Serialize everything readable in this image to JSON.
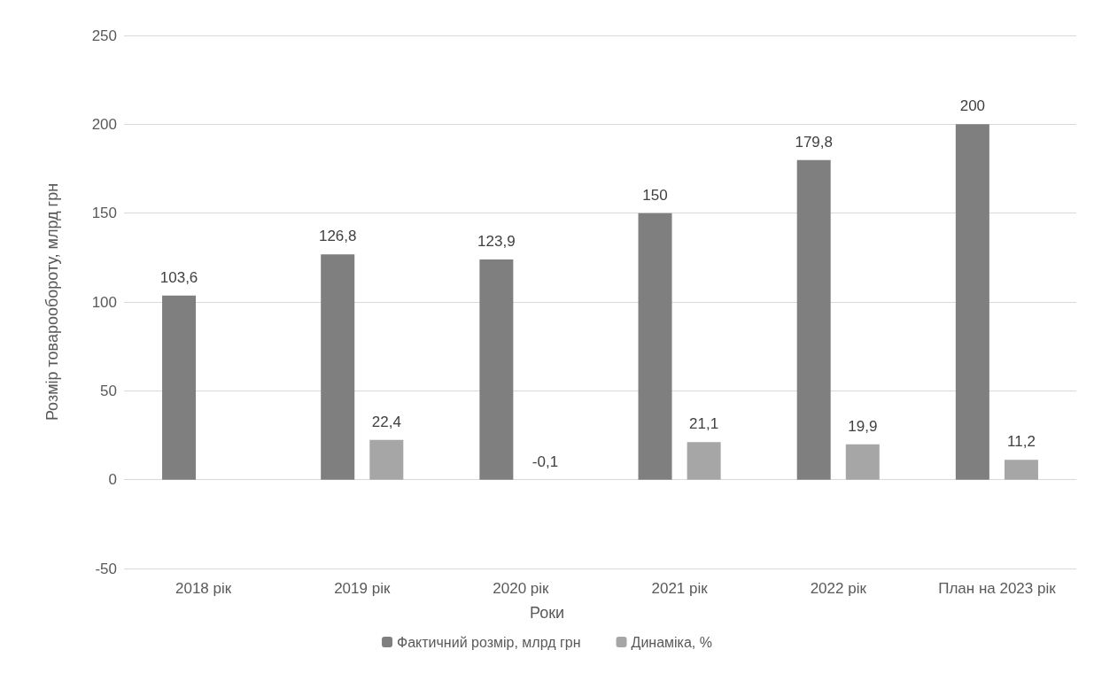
{
  "chart_data": {
    "type": "bar",
    "xlabel": "Роки",
    "ylabel": "Розмір товарообороту, млрд грн",
    "categories": [
      "2018 рік",
      "2019 рік",
      "2020 рік",
      "2021 рік",
      "2022 рік",
      "План на 2023 рік"
    ],
    "series": [
      {
        "name": "Фактичний розмір, млрд грн",
        "color": "#7f7f7f",
        "values": [
          103.6,
          126.8,
          123.9,
          150,
          179.8,
          200
        ],
        "value_labels": [
          "103,6",
          "126,8",
          "123,9",
          "150",
          "179,8",
          "200"
        ]
      },
      {
        "name": "Динаміка, %",
        "color": "#a6a6a6",
        "values": [
          null,
          22.4,
          -0.1,
          21.1,
          19.9,
          11.2
        ],
        "value_labels": [
          null,
          "22,4",
          "-0,1",
          "21,1",
          "19,9",
          "11,2"
        ]
      }
    ],
    "ylim": [
      -50,
      250
    ],
    "yticks": [
      -50,
      0,
      50,
      100,
      150,
      200,
      250
    ],
    "grid": "y",
    "legend": "bottom"
  }
}
